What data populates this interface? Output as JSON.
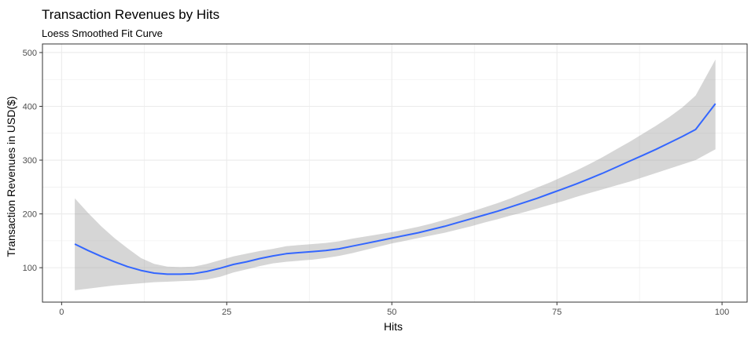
{
  "chart_data": {
    "type": "line",
    "title": "Transaction Revenues by Hits",
    "subtitle": "Loess Smoothed Fit Curve",
    "xlabel": "Hits",
    "ylabel": "Transaction Revenues in USD($)",
    "xlim": [
      -2.9,
      103.8
    ],
    "ylim": [
      36,
      516
    ],
    "xticks": [
      0,
      25,
      50,
      75,
      100
    ],
    "yticks": [
      100,
      200,
      300,
      400,
      500
    ],
    "grid": true,
    "legend": "none",
    "colors": {
      "line": "#3366FF",
      "band": "#999999",
      "grid": "#EBEBEB",
      "border": "#333333"
    },
    "series": [
      {
        "x": [
          2,
          4,
          6,
          8,
          10,
          12,
          14,
          16,
          18,
          20,
          22,
          24,
          26,
          28,
          30,
          32,
          34,
          36,
          38,
          40,
          42,
          44,
          46,
          48,
          50,
          52,
          54,
          56,
          58,
          60,
          62,
          64,
          66,
          68,
          70,
          72,
          74,
          76,
          78,
          80,
          82,
          84,
          86,
          88,
          90,
          92,
          94,
          96,
          99
        ],
        "y": [
          144,
          132,
          121,
          111,
          102,
          95,
          90,
          88,
          88,
          89,
          93,
          99,
          106,
          111,
          117,
          122,
          126,
          128,
          130,
          132,
          135,
          140,
          145,
          150,
          155,
          160,
          165,
          171,
          177,
          184,
          191,
          198,
          205,
          213,
          221,
          229,
          238,
          247,
          256,
          266,
          276,
          287,
          298,
          309,
          320,
          332,
          344,
          357,
          405
        ],
        "lower": [
          58,
          61,
          64,
          67,
          69,
          71,
          73,
          74,
          75,
          76,
          78,
          83,
          91,
          97,
          103,
          108,
          111,
          113,
          115,
          118,
          122,
          127,
          133,
          139,
          145,
          150,
          155,
          160,
          165,
          171,
          177,
          184,
          190,
          197,
          203,
          210,
          217,
          224,
          232,
          239,
          246,
          253,
          260,
          268,
          276,
          284,
          292,
          300,
          320
        ],
        "upper": [
          229,
          202,
          177,
          155,
          136,
          118,
          107,
          102,
          101,
          102,
          107,
          114,
          121,
          126,
          131,
          135,
          140,
          142,
          144,
          146,
          149,
          154,
          158,
          162,
          166,
          171,
          176,
          182,
          189,
          196,
          204,
          212,
          220,
          229,
          239,
          249,
          259,
          270,
          281,
          293,
          306,
          320,
          334,
          349,
          364,
          380,
          398,
          420,
          487
        ]
      }
    ]
  }
}
